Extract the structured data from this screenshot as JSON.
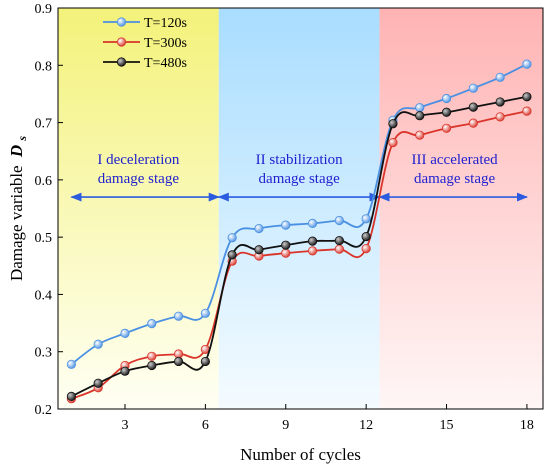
{
  "chart_data": {
    "type": "line",
    "title": "",
    "xlabel": "Number of cycles",
    "ylabel": "Damage variable",
    "ylabel_symbol": "D",
    "ylabel_subscript": "s",
    "xlim": [
      0.5,
      18.6
    ],
    "ylim": [
      0.2,
      0.9
    ],
    "xticks": [
      3,
      6,
      9,
      12,
      15,
      18
    ],
    "yticks": [
      0.2,
      0.3,
      0.4,
      0.5,
      0.6,
      0.7,
      0.8,
      0.9
    ],
    "grid": false,
    "legend_position": "top-left",
    "x": [
      1,
      2,
      3,
      4,
      5,
      6,
      7,
      8,
      9,
      10,
      11,
      12,
      13,
      14,
      15,
      16,
      17,
      18
    ],
    "series": [
      {
        "name": "T=120s",
        "color": "#4a90e2",
        "values": [
          0.278,
          0.313,
          0.332,
          0.349,
          0.362,
          0.367,
          0.499,
          0.515,
          0.521,
          0.524,
          0.529,
          0.532,
          0.704,
          0.726,
          0.742,
          0.76,
          0.779,
          0.802
        ]
      },
      {
        "name": "T=300s",
        "color": "#d9352a",
        "values": [
          0.218,
          0.237,
          0.276,
          0.292,
          0.296,
          0.304,
          0.458,
          0.467,
          0.472,
          0.476,
          0.479,
          0.48,
          0.665,
          0.678,
          0.69,
          0.699,
          0.71,
          0.72
        ]
      },
      {
        "name": "T=480s",
        "color": "#111111",
        "values": [
          0.222,
          0.245,
          0.266,
          0.276,
          0.283,
          0.283,
          0.469,
          0.478,
          0.486,
          0.493,
          0.494,
          0.501,
          0.698,
          0.712,
          0.718,
          0.727,
          0.736,
          0.745
        ]
      }
    ],
    "stages": [
      {
        "label_line1": "I deceleration",
        "label_line2": "damage stage",
        "x_range": [
          0.5,
          6.5
        ],
        "color": "#fafaa0"
      },
      {
        "label_line1": "II stabilization",
        "label_line2": "damage stage",
        "x_range": [
          6.5,
          12.5
        ],
        "color": "#bfe6ff"
      },
      {
        "label_line1": "III accelerated",
        "label_line2": "damage stage",
        "x_range": [
          12.5,
          18.6
        ],
        "color": "#ffc7c7"
      }
    ],
    "stage_arrow_y": 0.57,
    "colors": {
      "stage_text": "#1f1fd0",
      "arrow": "#2b5ce0"
    }
  }
}
